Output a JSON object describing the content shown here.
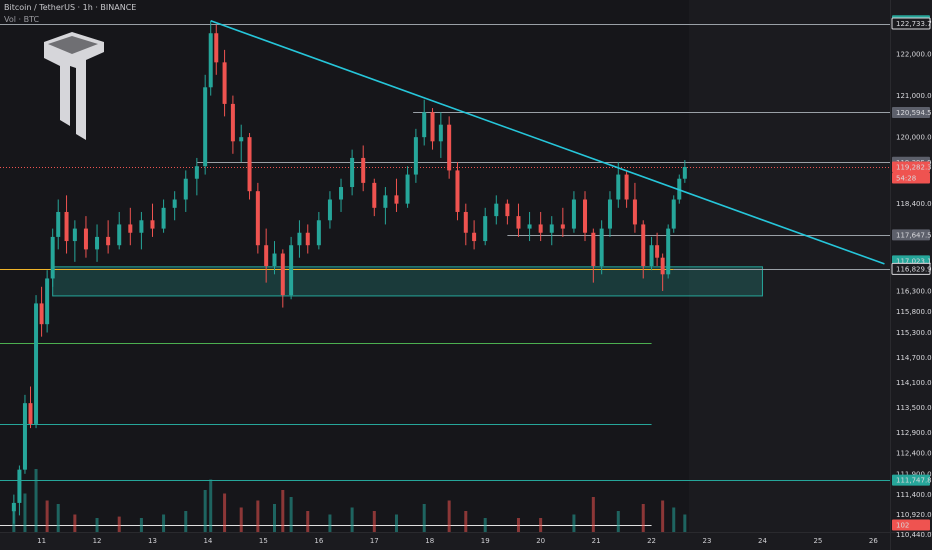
{
  "header": {
    "symbol_line": "Bitcoin / TetherUS · 1h · BINANCE",
    "volume_line": "Vol · BTC"
  },
  "colors": {
    "up": "#26a69a",
    "down": "#ef5350",
    "trendline": "#26c6da",
    "support_zone": "#26a69a",
    "green_line": "#4caf50",
    "teal_line": "#26a69a",
    "gray_line": "#9aa0a6",
    "red_line": "#ef5350",
    "orange_line": "#f0b429",
    "background": "#1b1b1f"
  },
  "chart_data": {
    "type": "candlestick",
    "symbol": "BTCUSDT",
    "interval": "1h",
    "exchange": "BINANCE",
    "y_range": [
      110500,
      123300
    ],
    "x_range_days": [
      10.25,
      26.3
    ],
    "price_axis_labels": [
      "122,000.00",
      "121,000.00",
      "120,000.00",
      "118,400.00",
      "116,300.00",
      "115,800.00",
      "115,300.00",
      "114,700.00",
      "114,100.00",
      "113,500.00",
      "112,900.00",
      "112,400.00",
      "111,900.00",
      "111,400.00",
      "110,920.00",
      "110,440.00"
    ],
    "price_tags": [
      {
        "label": "122,799.66",
        "style": "teal"
      },
      {
        "label": "122,733.71",
        "style": "outline"
      },
      {
        "label": "120,594.59",
        "style": "gray"
      },
      {
        "label": "119,395.96",
        "style": "gray"
      },
      {
        "label": "119,282.32",
        "style": "red"
      },
      {
        "label": "54:28",
        "style": "red"
      },
      {
        "label": "117,647.56",
        "style": "gray"
      },
      {
        "label": "117,023.18",
        "style": "teal"
      },
      {
        "label": "116,829.98",
        "style": "outline"
      },
      {
        "label": "111,747.80",
        "style": "teal"
      },
      {
        "label": "102",
        "style": "red"
      }
    ],
    "time_axis_labels": [
      "11",
      "12",
      "13",
      "14",
      "15",
      "16",
      "17",
      "18",
      "19",
      "20",
      "21",
      "22",
      "23",
      "24",
      "25",
      "26"
    ],
    "horizontal_levels": [
      {
        "price": 122733.71,
        "style": "gray",
        "from_day": 10.25,
        "to_day": 26.3
      },
      {
        "price": 120594.59,
        "style": "gray",
        "from_day": 17.7,
        "to_day": 26.3
      },
      {
        "price": 119395.96,
        "style": "gray",
        "from_day": 13.8,
        "to_day": 26.3
      },
      {
        "price": 119282.32,
        "style": "red_dotted",
        "from_day": 10.25,
        "to_day": 26.3
      },
      {
        "price": 117647.56,
        "style": "gray",
        "from_day": 19.4,
        "to_day": 26.3
      },
      {
        "price": 116829.98,
        "style": "orange",
        "from_day": 10.25,
        "to_day": 22.4
      },
      {
        "price": 116829.98,
        "style": "gray",
        "from_day": 22.4,
        "to_day": 26.3
      },
      {
        "price": 115050,
        "style": "green",
        "from_day": 10.25,
        "to_day": 22.0
      },
      {
        "price": 113100,
        "style": "teal",
        "from_day": 10.25,
        "to_day": 22.0
      },
      {
        "price": 111747.8,
        "style": "teal",
        "from_day": 10.25,
        "to_day": 26.3
      },
      {
        "price": 110680,
        "style": "white",
        "from_day": 10.25,
        "to_day": 22.0
      }
    ],
    "support_zone": {
      "from_day": 11.2,
      "to_day": 24.0,
      "price_low": 116180,
      "price_high": 116880
    },
    "trendline": {
      "start": {
        "day": 14.05,
        "price": 122800
      },
      "end": {
        "day": 26.2,
        "price": 116950
      }
    },
    "candles": [
      {
        "day": 10.5,
        "open": 111000,
        "high": 111400,
        "low": 110700,
        "close": 111200
      },
      {
        "day": 10.6,
        "open": 111200,
        "high": 112100,
        "low": 110900,
        "close": 112000
      },
      {
        "day": 10.7,
        "open": 112000,
        "high": 113800,
        "low": 111900,
        "close": 113600
      },
      {
        "day": 10.8,
        "open": 113600,
        "high": 114000,
        "low": 113000,
        "close": 113100
      },
      {
        "day": 10.9,
        "open": 113100,
        "high": 116200,
        "low": 113000,
        "close": 116000
      },
      {
        "day": 11.0,
        "open": 116000,
        "high": 116400,
        "low": 115200,
        "close": 115500
      },
      {
        "day": 11.1,
        "open": 115500,
        "high": 116800,
        "low": 115300,
        "close": 116600
      },
      {
        "day": 11.2,
        "open": 116600,
        "high": 117800,
        "low": 116400,
        "close": 117600
      },
      {
        "day": 11.3,
        "open": 117600,
        "high": 118500,
        "low": 117300,
        "close": 118200
      },
      {
        "day": 11.45,
        "open": 118200,
        "high": 118600,
        "low": 117200,
        "close": 117500
      },
      {
        "day": 11.6,
        "open": 117500,
        "high": 118000,
        "low": 117000,
        "close": 117800
      },
      {
        "day": 11.8,
        "open": 117800,
        "high": 118100,
        "low": 117100,
        "close": 117300
      },
      {
        "day": 12.0,
        "open": 117300,
        "high": 117900,
        "low": 117000,
        "close": 117600
      },
      {
        "day": 12.2,
        "open": 117600,
        "high": 118000,
        "low": 117200,
        "close": 117400
      },
      {
        "day": 12.4,
        "open": 117400,
        "high": 118200,
        "low": 117300,
        "close": 117900
      },
      {
        "day": 12.6,
        "open": 117900,
        "high": 118300,
        "low": 117400,
        "close": 117700
      },
      {
        "day": 12.8,
        "open": 117700,
        "high": 118200,
        "low": 117300,
        "close": 118000
      },
      {
        "day": 13.0,
        "open": 118000,
        "high": 118400,
        "low": 117600,
        "close": 117800
      },
      {
        "day": 13.2,
        "open": 117800,
        "high": 118500,
        "low": 117700,
        "close": 118300
      },
      {
        "day": 13.4,
        "open": 118300,
        "high": 118700,
        "low": 118000,
        "close": 118500
      },
      {
        "day": 13.6,
        "open": 118500,
        "high": 119200,
        "low": 118200,
        "close": 119000
      },
      {
        "day": 13.8,
        "open": 119000,
        "high": 119500,
        "low": 118600,
        "close": 119300
      },
      {
        "day": 13.95,
        "open": 119300,
        "high": 121500,
        "low": 119100,
        "close": 121200
      },
      {
        "day": 14.05,
        "open": 121200,
        "high": 122800,
        "low": 121000,
        "close": 122500
      },
      {
        "day": 14.15,
        "open": 122500,
        "high": 122700,
        "low": 121500,
        "close": 121800
      },
      {
        "day": 14.3,
        "open": 121800,
        "high": 122100,
        "low": 120500,
        "close": 120800
      },
      {
        "day": 14.45,
        "open": 120800,
        "high": 121000,
        "low": 119600,
        "close": 119900
      },
      {
        "day": 14.6,
        "open": 119900,
        "high": 120300,
        "low": 119400,
        "close": 120000
      },
      {
        "day": 14.75,
        "open": 120000,
        "high": 120100,
        "low": 118500,
        "close": 118700
      },
      {
        "day": 14.9,
        "open": 118700,
        "high": 118900,
        "low": 117200,
        "close": 117400
      },
      {
        "day": 15.05,
        "open": 117400,
        "high": 117800,
        "low": 116500,
        "close": 116900
      },
      {
        "day": 15.2,
        "open": 116900,
        "high": 117500,
        "low": 116700,
        "close": 117200
      },
      {
        "day": 15.35,
        "open": 117200,
        "high": 117300,
        "low": 115900,
        "close": 116200
      },
      {
        "day": 15.5,
        "open": 116200,
        "high": 117600,
        "low": 116100,
        "close": 117400
      },
      {
        "day": 15.65,
        "open": 117400,
        "high": 118000,
        "low": 117100,
        "close": 117700
      },
      {
        "day": 15.8,
        "open": 117700,
        "high": 117900,
        "low": 117200,
        "close": 117400
      },
      {
        "day": 16.0,
        "open": 117400,
        "high": 118200,
        "low": 117300,
        "close": 118000
      },
      {
        "day": 16.2,
        "open": 118000,
        "high": 118700,
        "low": 117800,
        "close": 118500
      },
      {
        "day": 16.4,
        "open": 118500,
        "high": 119000,
        "low": 118200,
        "close": 118800
      },
      {
        "day": 16.6,
        "open": 118800,
        "high": 119700,
        "low": 118600,
        "close": 119500
      },
      {
        "day": 16.8,
        "open": 119500,
        "high": 119800,
        "low": 118700,
        "close": 118900
      },
      {
        "day": 17.0,
        "open": 118900,
        "high": 119000,
        "low": 118100,
        "close": 118300
      },
      {
        "day": 17.2,
        "open": 118300,
        "high": 118800,
        "low": 117900,
        "close": 118600
      },
      {
        "day": 17.4,
        "open": 118600,
        "high": 119000,
        "low": 118200,
        "close": 118400
      },
      {
        "day": 17.6,
        "open": 118400,
        "high": 119300,
        "low": 118300,
        "close": 119100
      },
      {
        "day": 17.75,
        "open": 119100,
        "high": 120200,
        "low": 118900,
        "close": 120000
      },
      {
        "day": 17.9,
        "open": 120000,
        "high": 120900,
        "low": 119800,
        "close": 120600
      },
      {
        "day": 18.05,
        "open": 120600,
        "high": 120700,
        "low": 119700,
        "close": 119900
      },
      {
        "day": 18.2,
        "open": 119900,
        "high": 120600,
        "low": 119500,
        "close": 120300
      },
      {
        "day": 18.35,
        "open": 120300,
        "high": 120500,
        "low": 119000,
        "close": 119200
      },
      {
        "day": 18.5,
        "open": 119200,
        "high": 119400,
        "low": 118000,
        "close": 118200
      },
      {
        "day": 18.65,
        "open": 118200,
        "high": 118400,
        "low": 117400,
        "close": 117700
      },
      {
        "day": 18.8,
        "open": 117700,
        "high": 118000,
        "low": 117300,
        "close": 117500
      },
      {
        "day": 19.0,
        "open": 117500,
        "high": 118300,
        "low": 117400,
        "close": 118100
      },
      {
        "day": 19.2,
        "open": 118100,
        "high": 118600,
        "low": 117900,
        "close": 118400
      },
      {
        "day": 19.4,
        "open": 118400,
        "high": 118500,
        "low": 117900,
        "close": 118100
      },
      {
        "day": 19.6,
        "open": 118100,
        "high": 118400,
        "low": 117600,
        "close": 117800
      },
      {
        "day": 19.8,
        "open": 117800,
        "high": 118200,
        "low": 117500,
        "close": 117900
      },
      {
        "day": 20.0,
        "open": 117900,
        "high": 118200,
        "low": 117500,
        "close": 117700
      },
      {
        "day": 20.2,
        "open": 117700,
        "high": 118100,
        "low": 117400,
        "close": 117900
      },
      {
        "day": 20.4,
        "open": 117900,
        "high": 118300,
        "low": 117600,
        "close": 117800
      },
      {
        "day": 20.6,
        "open": 117800,
        "high": 118700,
        "low": 117700,
        "close": 118500
      },
      {
        "day": 20.8,
        "open": 118500,
        "high": 118700,
        "low": 117500,
        "close": 117700
      },
      {
        "day": 20.95,
        "open": 117700,
        "high": 117800,
        "low": 116500,
        "close": 116900
      },
      {
        "day": 21.1,
        "open": 116900,
        "high": 118000,
        "low": 116700,
        "close": 117800
      },
      {
        "day": 21.25,
        "open": 117800,
        "high": 118700,
        "low": 117600,
        "close": 118500
      },
      {
        "day": 21.4,
        "open": 118500,
        "high": 119400,
        "low": 118300,
        "close": 119100
      },
      {
        "day": 21.55,
        "open": 119100,
        "high": 119200,
        "low": 118300,
        "close": 118500
      },
      {
        "day": 21.7,
        "open": 118500,
        "high": 118900,
        "low": 117700,
        "close": 117900
      },
      {
        "day": 21.85,
        "open": 117900,
        "high": 118000,
        "low": 116600,
        "close": 116900
      },
      {
        "day": 22.0,
        "open": 116900,
        "high": 117600,
        "low": 116800,
        "close": 117400
      },
      {
        "day": 22.1,
        "open": 117400,
        "high": 117700,
        "low": 116900,
        "close": 117100
      },
      {
        "day": 22.2,
        "open": 117100,
        "high": 117200,
        "low": 116300,
        "close": 116700
      },
      {
        "day": 22.3,
        "open": 116700,
        "high": 117900,
        "low": 116600,
        "close": 117800
      },
      {
        "day": 22.4,
        "open": 117800,
        "high": 118600,
        "low": 117700,
        "close": 118500
      },
      {
        "day": 22.5,
        "open": 118500,
        "high": 119100,
        "low": 118400,
        "close": 119000
      },
      {
        "day": 22.6,
        "open": 119000,
        "high": 119450,
        "low": 118900,
        "close": 119282
      }
    ],
    "volume": [
      {
        "day": 10.5,
        "value": 0.35,
        "dir": "up"
      },
      {
        "day": 10.7,
        "value": 0.55,
        "dir": "up"
      },
      {
        "day": 10.9,
        "value": 0.9,
        "dir": "up"
      },
      {
        "day": 11.1,
        "value": 0.45,
        "dir": "down"
      },
      {
        "day": 11.3,
        "value": 0.4,
        "dir": "up"
      },
      {
        "day": 11.6,
        "value": 0.25,
        "dir": "down"
      },
      {
        "day": 12.0,
        "value": 0.2,
        "dir": "up"
      },
      {
        "day": 12.4,
        "value": 0.22,
        "dir": "down"
      },
      {
        "day": 12.8,
        "value": 0.2,
        "dir": "up"
      },
      {
        "day": 13.2,
        "value": 0.25,
        "dir": "up"
      },
      {
        "day": 13.6,
        "value": 0.3,
        "dir": "up"
      },
      {
        "day": 13.95,
        "value": 0.6,
        "dir": "up"
      },
      {
        "day": 14.05,
        "value": 0.75,
        "dir": "up"
      },
      {
        "day": 14.3,
        "value": 0.55,
        "dir": "down"
      },
      {
        "day": 14.6,
        "value": 0.35,
        "dir": "down"
      },
      {
        "day": 14.9,
        "value": 0.45,
        "dir": "down"
      },
      {
        "day": 15.2,
        "value": 0.4,
        "dir": "up"
      },
      {
        "day": 15.35,
        "value": 0.6,
        "dir": "down"
      },
      {
        "day": 15.5,
        "value": 0.5,
        "dir": "up"
      },
      {
        "day": 15.8,
        "value": 0.3,
        "dir": "down"
      },
      {
        "day": 16.2,
        "value": 0.25,
        "dir": "up"
      },
      {
        "day": 16.6,
        "value": 0.35,
        "dir": "up"
      },
      {
        "day": 17.0,
        "value": 0.3,
        "dir": "down"
      },
      {
        "day": 17.4,
        "value": 0.25,
        "dir": "up"
      },
      {
        "day": 17.9,
        "value": 0.4,
        "dir": "up"
      },
      {
        "day": 18.35,
        "value": 0.45,
        "dir": "down"
      },
      {
        "day": 18.65,
        "value": 0.3,
        "dir": "down"
      },
      {
        "day": 19.0,
        "value": 0.2,
        "dir": "up"
      },
      {
        "day": 19.6,
        "value": 0.2,
        "dir": "down"
      },
      {
        "day": 20.0,
        "value": 0.2,
        "dir": "down"
      },
      {
        "day": 20.6,
        "value": 0.25,
        "dir": "up"
      },
      {
        "day": 20.95,
        "value": 0.5,
        "dir": "down"
      },
      {
        "day": 21.4,
        "value": 0.3,
        "dir": "up"
      },
      {
        "day": 21.85,
        "value": 0.4,
        "dir": "down"
      },
      {
        "day": 22.2,
        "value": 0.45,
        "dir": "down"
      },
      {
        "day": 22.4,
        "value": 0.35,
        "dir": "up"
      },
      {
        "day": 22.6,
        "value": 0.25,
        "dir": "up"
      }
    ]
  }
}
